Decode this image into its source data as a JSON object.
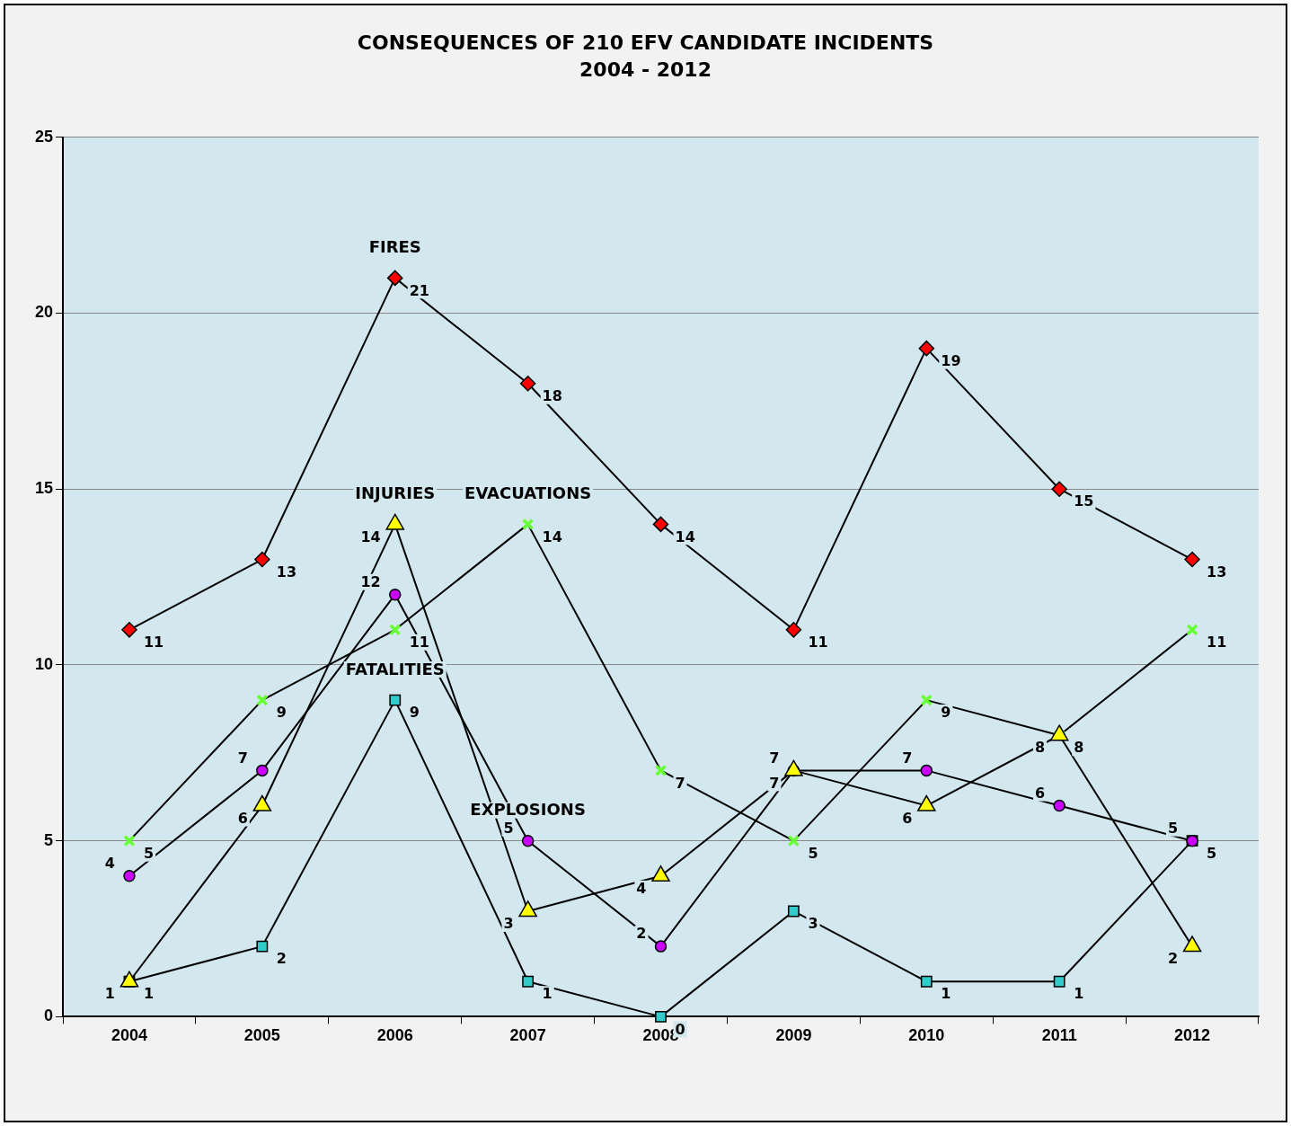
{
  "chart_data": {
    "type": "line",
    "title": "CONSEQUENCES OF 210 EFV CANDIDATE INCIDENTS",
    "subtitle": "2004 - 2012",
    "categories": [
      "2004",
      "2005",
      "2006",
      "2007",
      "2008",
      "2009",
      "2010",
      "2011",
      "2012"
    ],
    "series": [
      {
        "color": "#ff0000",
        "marker": "diamond",
        "values": [
          11,
          13,
          21,
          18,
          14,
          11,
          19,
          15,
          13
        ]
      },
      {
        "color": "#ffff00",
        "marker": "triangle",
        "values": [
          1,
          6,
          14,
          3,
          4,
          7,
          6,
          8,
          2
        ]
      },
      {
        "color": "#66ff33",
        "marker": "cross",
        "values": [
          5,
          9,
          11,
          14,
          7,
          5,
          9,
          8,
          11
        ]
      },
      {
        "color": "#cc00ff",
        "marker": "circle",
        "values": [
          4,
          7,
          12,
          5,
          2,
          7,
          7,
          6,
          5
        ]
      },
      {
        "color": "#33cccc",
        "marker": "square",
        "values": [
          1,
          2,
          9,
          1,
          0,
          3,
          1,
          1,
          5
        ]
      }
    ],
    "ylim": [
      0,
      25
    ],
    "yticks": [
      0,
      5,
      10,
      15,
      20,
      25
    ],
    "grid": "y",
    "legend": false,
    "data_labels": true,
    "line_style": "solid",
    "annotations": [
      {
        "text": "FIRES",
        "x": "2006",
        "y": 21
      },
      {
        "text": "INJURIES",
        "x": "2006",
        "y": 14
      },
      {
        "text": "EVACUATIONS",
        "x": "2007",
        "y": 14
      },
      {
        "text": "EXPLOSIONS",
        "x": "2007",
        "y": 5
      },
      {
        "text": "FATALITIES",
        "x": "2006",
        "y": 9
      }
    ]
  }
}
